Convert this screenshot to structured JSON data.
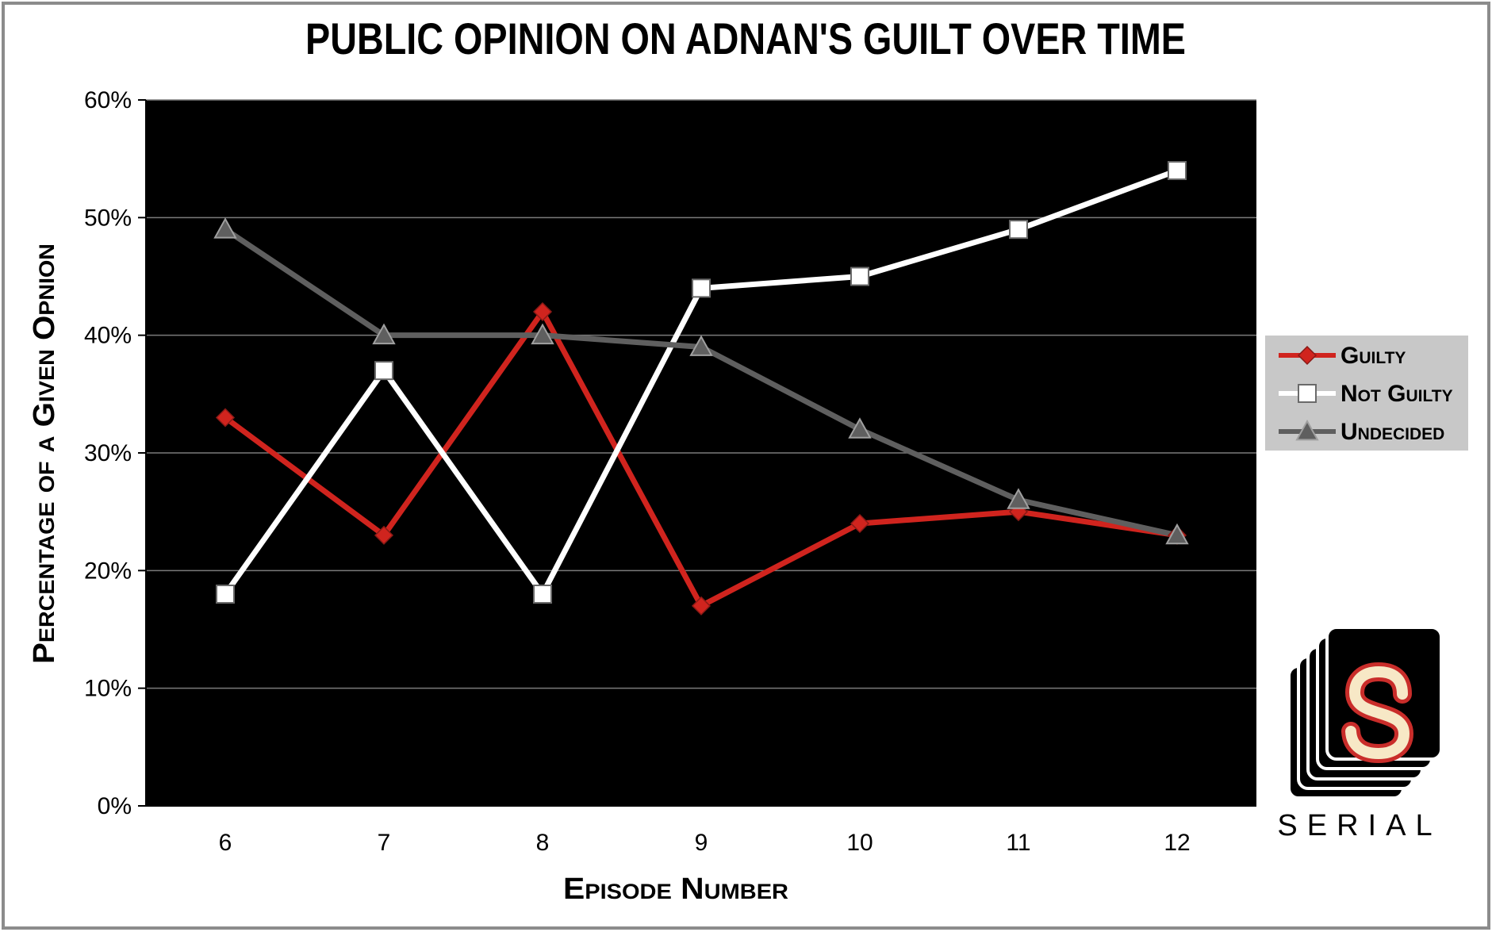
{
  "chart_data": {
    "type": "line",
    "title": "PUBLIC OPINION ON ADNAN'S GUILT OVER TIME",
    "xlabel": "Episode Number",
    "ylabel": "Percentage of a Given Opnion",
    "x": [
      6,
      7,
      8,
      9,
      10,
      11,
      12
    ],
    "x_tick_labels": [
      "6",
      "7",
      "8",
      "9",
      "10",
      "11",
      "12"
    ],
    "ylim": [
      0,
      60
    ],
    "y_ticks": [
      0,
      10,
      20,
      30,
      40,
      50,
      60
    ],
    "y_tick_labels": [
      "0%",
      "10%",
      "20%",
      "30%",
      "40%",
      "50%",
      "60%"
    ],
    "grid": true,
    "legend_position": "right",
    "plot_background": "#000000",
    "series": [
      {
        "name": "Guilty",
        "values": [
          33,
          23,
          42,
          17,
          24,
          25,
          23
        ],
        "color": "#d0241e",
        "marker": "diamond"
      },
      {
        "name": "Not Guilty",
        "values": [
          18,
          37,
          18,
          44,
          45,
          49,
          54
        ],
        "color": "#ffffff",
        "marker": "square"
      },
      {
        "name": "Undecided",
        "values": [
          49,
          40,
          40,
          39,
          32,
          26,
          23
        ],
        "color": "#5f5f5f",
        "marker": "triangle"
      }
    ]
  },
  "logo": {
    "icon": "serial-logo-icon",
    "wordmark": "SERIAL",
    "letter": "S",
    "letter_color": "#f7e8c6",
    "letter_outline": "#c92d2a"
  }
}
